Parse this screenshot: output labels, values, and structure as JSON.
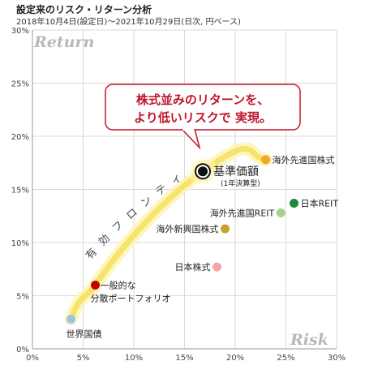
{
  "header": {
    "title": "設定来のリスク・リターン分析",
    "subtitle": "2018年10月4日(設定日)～2021年10月29日(日次, 円ベース)"
  },
  "corners": {
    "y_axis": "Return",
    "x_axis": "Risk"
  },
  "callout": {
    "line1": "株式並みのリターンを、",
    "line2": "より低いリスクで 実現。",
    "border_color": "#c0172b"
  },
  "frontier": {
    "label": "有 効 フ ロ ン テ ィ ア",
    "color": "#f6e36a"
  },
  "chart_data": {
    "type": "scatter",
    "xlim": [
      0,
      30
    ],
    "ylim": [
      0,
      30
    ],
    "xticks": [
      "0%",
      "5%",
      "10%",
      "15%",
      "20%",
      "25%",
      "30%"
    ],
    "yticks": [
      "0%",
      "5%",
      "10%",
      "15%",
      "20%",
      "25%",
      "30%"
    ],
    "grid": true,
    "points": [
      {
        "name": "世界国債",
        "x": 3.8,
        "y": 2.8,
        "color": "#9dc3e6"
      },
      {
        "name": "一般的な",
        "name2": "分散ポートフォリオ",
        "x": 6.2,
        "y": 6.0,
        "color": "#c00000"
      },
      {
        "name": "日本株式",
        "x": 18.2,
        "y": 7.7,
        "color": "#f4a6a6"
      },
      {
        "name": "海外新興国株式",
        "x": 19.0,
        "y": 11.3,
        "color": "#c9a227"
      },
      {
        "name": "海外先進国REIT",
        "x": 24.5,
        "y": 12.8,
        "color": "#a9d18e"
      },
      {
        "name": "日本REIT",
        "x": 25.8,
        "y": 13.7,
        "color": "#1e8a3a"
      },
      {
        "name": "海外先進国株式",
        "x": 23.0,
        "y": 17.8,
        "color": "#f5a623"
      },
      {
        "name": "基準価額",
        "note": "(1年決算型)",
        "x": 16.8,
        "y": 16.7,
        "color": "#111111",
        "highlight": true
      }
    ]
  }
}
